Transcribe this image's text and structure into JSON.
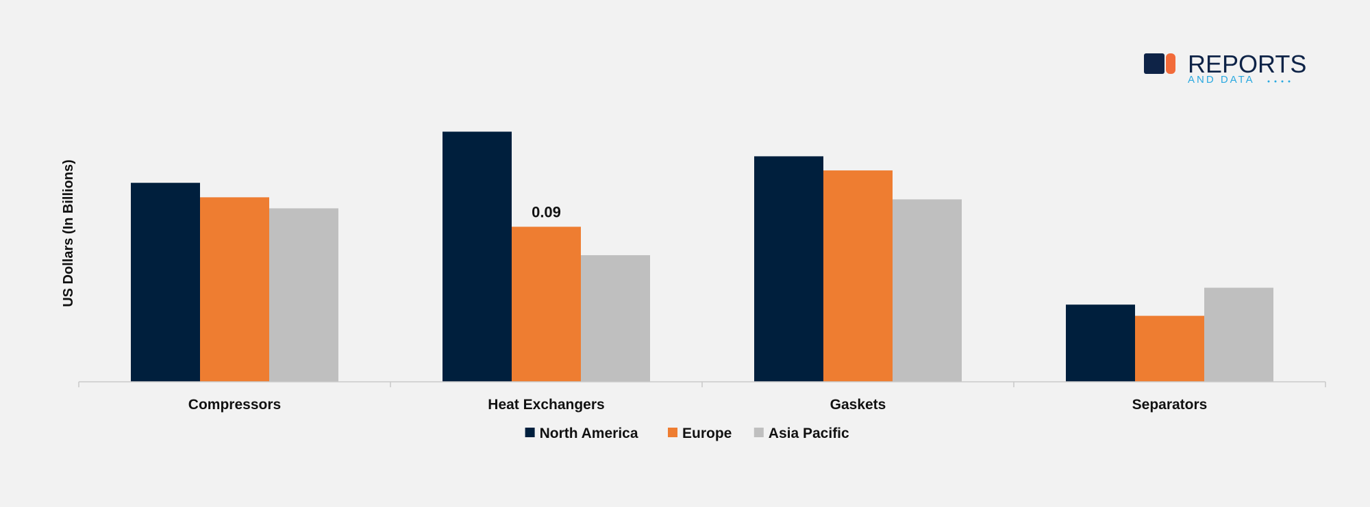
{
  "logo": {
    "name": "REPORTS",
    "tagline": "AND DATA",
    "colors": {
      "dark": "#0e2347",
      "accent": "#f26b3a",
      "light": "#29a8e0"
    }
  },
  "chart_data": {
    "type": "bar",
    "ylabel": "US Dollars (In Billions)",
    "categories": [
      "Compressors",
      "Heat Exchangers",
      "Gaskets",
      "Separators"
    ],
    "series": [
      {
        "name": "North America",
        "color": "#001f3d",
        "values": [
          0.1155,
          0.1452,
          0.1309,
          0.0448
        ]
      },
      {
        "name": "Europe",
        "color": "#ee7d31",
        "values": [
          0.1071,
          0.09,
          0.1227,
          0.0383
        ]
      },
      {
        "name": "Asia Pacific",
        "color": "#bfbfbf",
        "values": [
          0.1007,
          0.0735,
          0.1059,
          0.0546
        ]
      }
    ],
    "annotations": [
      {
        "category": "Heat Exchangers",
        "series": "Europe",
        "text": "0.09"
      }
    ],
    "ylim": [
      0,
      0.17
    ],
    "grid": false,
    "legend": "bottom"
  }
}
